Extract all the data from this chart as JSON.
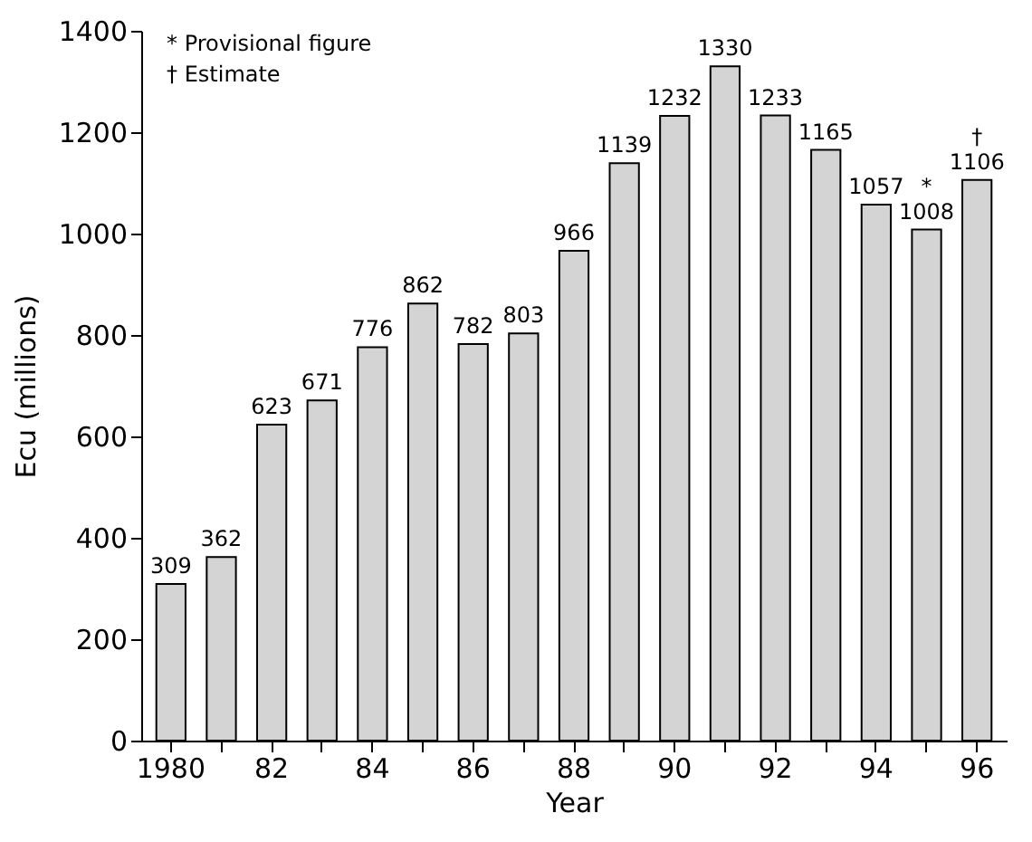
{
  "chart_data": {
    "type": "bar",
    "xlabel": "Year",
    "ylabel": "Ecu (millions)",
    "categories": [
      "1980",
      null,
      "82",
      null,
      "84",
      null,
      "86",
      null,
      "88",
      null,
      "90",
      null,
      "92",
      null,
      "94",
      null,
      "96"
    ],
    "values": [
      309,
      362,
      623,
      671,
      776,
      862,
      782,
      803,
      966,
      1139,
      1232,
      1330,
      1233,
      1165,
      1057,
      1008,
      1106
    ],
    "data_labels": true,
    "color": "#d4d4d4",
    "ylim": [
      0,
      1400
    ],
    "yticks": [
      0,
      200,
      400,
      600,
      800,
      1000,
      1200,
      1400
    ],
    "grid": false,
    "annotations": [
      "* Provisional figure",
      "† Estimate",
      {
        "text": "*",
        "y": 1008
      },
      {
        "text": "†",
        "x": "96",
        "y": 1106
      }
    ]
  }
}
